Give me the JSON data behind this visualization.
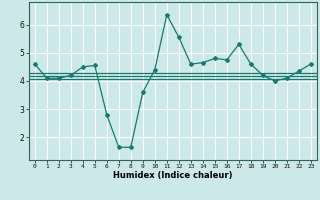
{
  "xlabel": "Humidex (Indice chaleur)",
  "bg_color": "#cce8e8",
  "line_color": "#1a7a6e",
  "grid_color": "#ffffff",
  "x_main": [
    0,
    1,
    2,
    3,
    4,
    5,
    6,
    7,
    8,
    9,
    10,
    11,
    12,
    13,
    14,
    15,
    16,
    17,
    18,
    19,
    20,
    21,
    22,
    23
  ],
  "y_main": [
    4.6,
    4.1,
    4.1,
    4.2,
    4.5,
    4.55,
    2.8,
    1.65,
    1.65,
    3.6,
    4.4,
    6.35,
    5.55,
    4.6,
    4.65,
    4.8,
    4.75,
    5.3,
    4.6,
    4.2,
    4.0,
    4.1,
    4.35,
    4.6
  ],
  "y_hline1": 4.08,
  "y_hline2": 4.18,
  "y_hline3": 4.28,
  "xlim": [
    -0.5,
    23.5
  ],
  "ylim": [
    1.2,
    6.8
  ],
  "yticks": [
    2,
    3,
    4,
    5,
    6
  ],
  "xticks": [
    0,
    1,
    2,
    3,
    4,
    5,
    6,
    7,
    8,
    9,
    10,
    11,
    12,
    13,
    14,
    15,
    16,
    17,
    18,
    19,
    20,
    21,
    22,
    23
  ]
}
